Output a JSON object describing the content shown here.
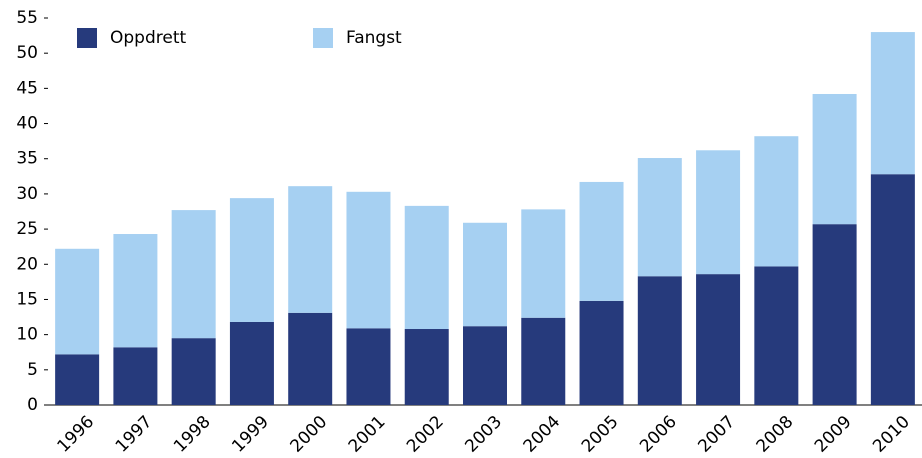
{
  "chart_data": {
    "type": "stacked_bar",
    "categories": [
      "1996",
      "1997",
      "1998",
      "1999",
      "2000",
      "2001",
      "2002",
      "2003",
      "2004",
      "2005",
      "2006",
      "2007",
      "2008",
      "2009",
      "2010"
    ],
    "series": [
      {
        "name": "Oppdrett",
        "color": "#263a7c",
        "values": [
          7.2,
          8.2,
          9.5,
          11.8,
          13.1,
          10.9,
          10.8,
          11.2,
          12.4,
          14.8,
          18.3,
          18.6,
          19.7,
          25.7,
          32.8
        ]
      },
      {
        "name": "Fangst",
        "color": "#a6d0f2",
        "values": [
          15.0,
          16.1,
          18.2,
          17.6,
          18.0,
          19.4,
          17.5,
          14.7,
          15.4,
          16.9,
          16.8,
          17.6,
          18.5,
          18.5,
          20.2
        ]
      }
    ],
    "ylim": [
      0,
      55
    ],
    "yticks": [
      0,
      5,
      10,
      15,
      20,
      25,
      30,
      35,
      40,
      45,
      50,
      55
    ],
    "legend": "top-left"
  }
}
